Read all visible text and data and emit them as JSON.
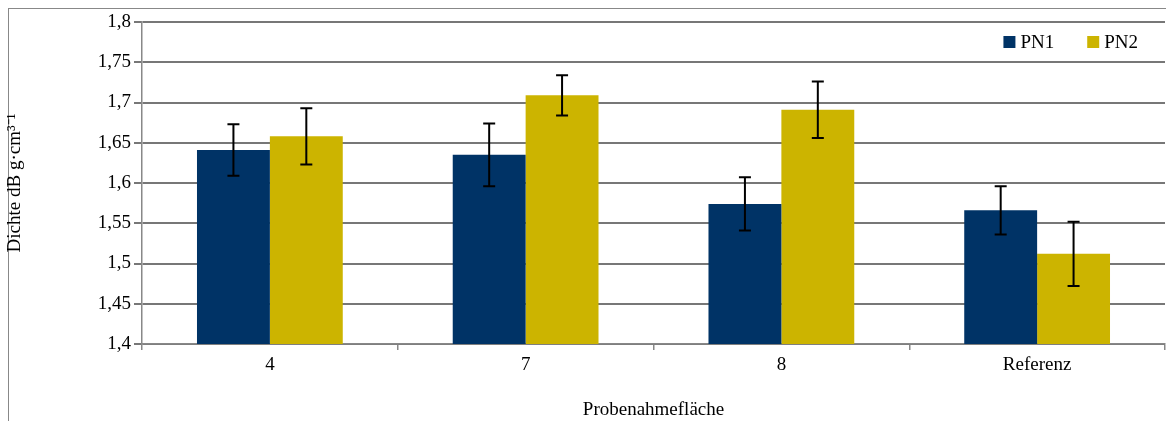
{
  "chart_data": {
    "type": "bar",
    "xlabel": "Probenahmefläche",
    "ylabel": "Dichte dB g·cm³⁻¹",
    "categories": [
      "4",
      "7",
      "8",
      "Referenz"
    ],
    "series": [
      {
        "name": "PN1",
        "color": "#003366",
        "values": [
          1.641,
          1.635,
          1.574,
          1.566
        ],
        "errors": [
          0.032,
          0.039,
          0.033,
          0.03
        ]
      },
      {
        "name": "PN2",
        "color": "#ccb400",
        "values": [
          1.658,
          1.709,
          1.691,
          1.512
        ],
        "errors": [
          0.035,
          0.025,
          0.035,
          0.04
        ]
      }
    ],
    "ylim": [
      1.4,
      1.8
    ],
    "yticks": [
      {
        "value": 1.4,
        "label": "1,4"
      },
      {
        "value": 1.45,
        "label": "1,45"
      },
      {
        "value": 1.5,
        "label": "1,5"
      },
      {
        "value": 1.55,
        "label": "1,55"
      },
      {
        "value": 1.6,
        "label": "1,6"
      },
      {
        "value": 1.65,
        "label": "1,65"
      },
      {
        "value": 1.7,
        "label": "1,7"
      },
      {
        "value": 1.75,
        "label": "1,75"
      },
      {
        "value": 1.8,
        "label": "1,8"
      }
    ],
    "grid": "y",
    "legend": "top right"
  }
}
